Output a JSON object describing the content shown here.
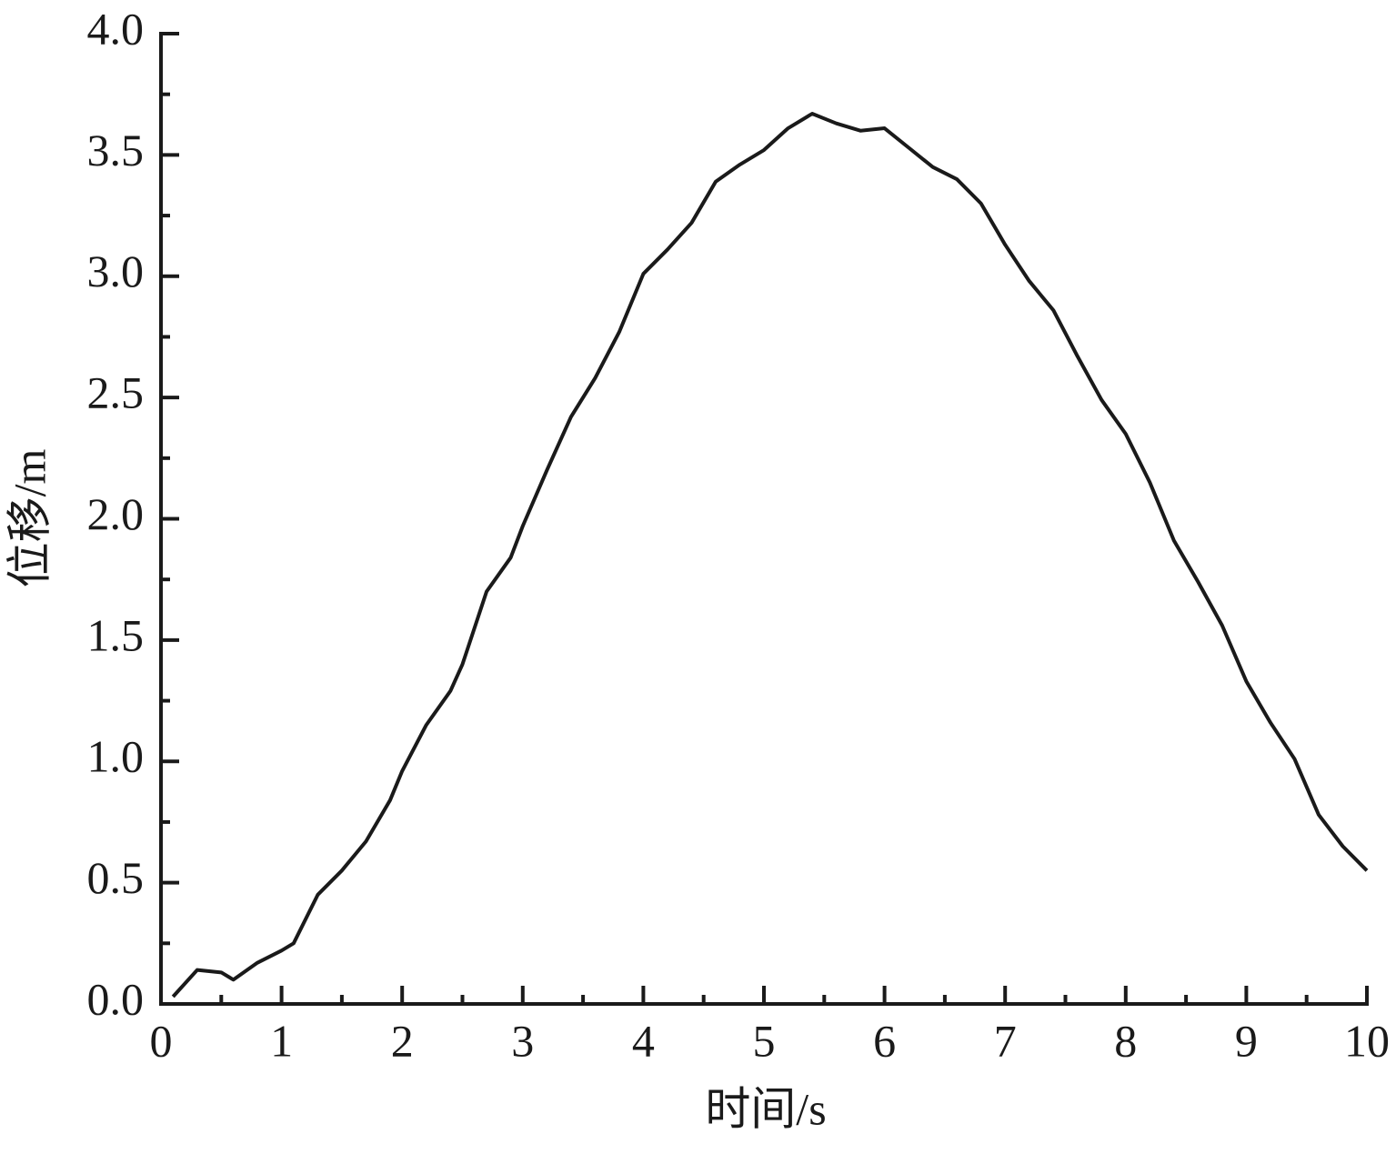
{
  "chart_data": {
    "type": "line",
    "xlabel": "时间/s",
    "ylabel": "位移/m",
    "x": [
      0.1,
      0.3,
      0.5,
      0.6,
      0.8,
      1.0,
      1.1,
      1.3,
      1.5,
      1.7,
      1.9,
      2.0,
      2.2,
      2.4,
      2.5,
      2.7,
      2.9,
      3.0,
      3.2,
      3.4,
      3.6,
      3.8,
      4.0,
      4.2,
      4.4,
      4.6,
      4.8,
      5.0,
      5.2,
      5.4,
      5.6,
      5.8,
      6.0,
      6.2,
      6.4,
      6.6,
      6.8,
      7.0,
      7.2,
      7.4,
      7.6,
      7.8,
      8.0,
      8.2,
      8.4,
      8.6,
      8.8,
      9.0,
      9.2,
      9.4,
      9.6,
      9.8,
      10.0
    ],
    "series": [
      {
        "color": "#1a1a1a",
        "values": [
          0.03,
          0.14,
          0.13,
          0.1,
          0.17,
          0.22,
          0.25,
          0.45,
          0.55,
          0.67,
          0.84,
          0.96,
          1.15,
          1.29,
          1.4,
          1.7,
          1.84,
          1.97,
          2.2,
          2.42,
          2.58,
          2.77,
          3.01,
          3.11,
          3.22,
          3.39,
          3.46,
          3.52,
          3.61,
          3.67,
          3.63,
          3.6,
          3.61,
          3.53,
          3.45,
          3.4,
          3.3,
          3.13,
          2.98,
          2.86,
          2.67,
          2.49,
          2.35,
          2.15,
          1.91,
          1.74,
          1.56,
          1.33,
          1.16,
          1.01,
          0.78,
          0.65,
          0.55
        ]
      }
    ],
    "xlim": [
      0,
      10
    ],
    "xticks": [
      0,
      1,
      2,
      3,
      4,
      5,
      6,
      7,
      8,
      9,
      10
    ],
    "xminorticks": [
      0.5,
      1.5,
      2.5,
      3.5,
      4.5,
      5.5,
      6.5,
      7.5,
      8.5,
      9.5
    ],
    "ylim": [
      0,
      4
    ],
    "yticks": [
      {
        "value": 0,
        "label": "0.0"
      },
      0.5,
      {
        "value": 1,
        "label": "1.0"
      },
      1.5,
      {
        "value": 2,
        "label": "2.0"
      },
      2.5,
      {
        "value": 3,
        "label": "3.0"
      },
      3.5,
      {
        "value": 4,
        "label": "4.0"
      }
    ],
    "yminorticks": [
      0.25,
      0.75,
      1.25,
      1.75,
      2.25,
      2.75,
      3.25,
      3.75
    ],
    "grid": false
  }
}
